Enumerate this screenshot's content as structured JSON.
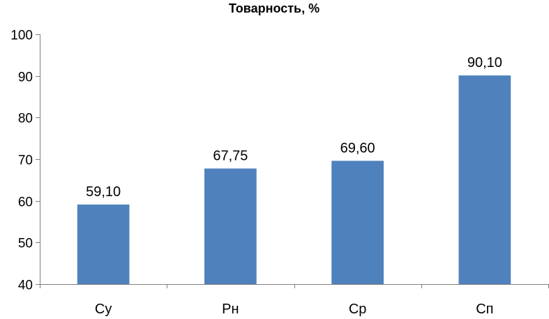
{
  "chart_data": {
    "type": "bar",
    "title": "Товарность, %",
    "categories": [
      "Су",
      "Рн",
      "Ср",
      "Сп"
    ],
    "values": [
      59.1,
      67.75,
      69.6,
      90.1
    ],
    "value_labels": [
      "59,10",
      "67,75",
      "69,60",
      "90,10"
    ],
    "xlabel": "",
    "ylabel": "",
    "ylim": [
      40,
      100
    ],
    "yticks": [
      40,
      50,
      60,
      70,
      80,
      90,
      100
    ],
    "ytick_labels": [
      "40",
      "50",
      "60",
      "70",
      "80",
      "90",
      "100"
    ],
    "grid": false,
    "legend": "none",
    "bar_color": "#4f81bd",
    "axis_color": "#7f7f7f"
  }
}
